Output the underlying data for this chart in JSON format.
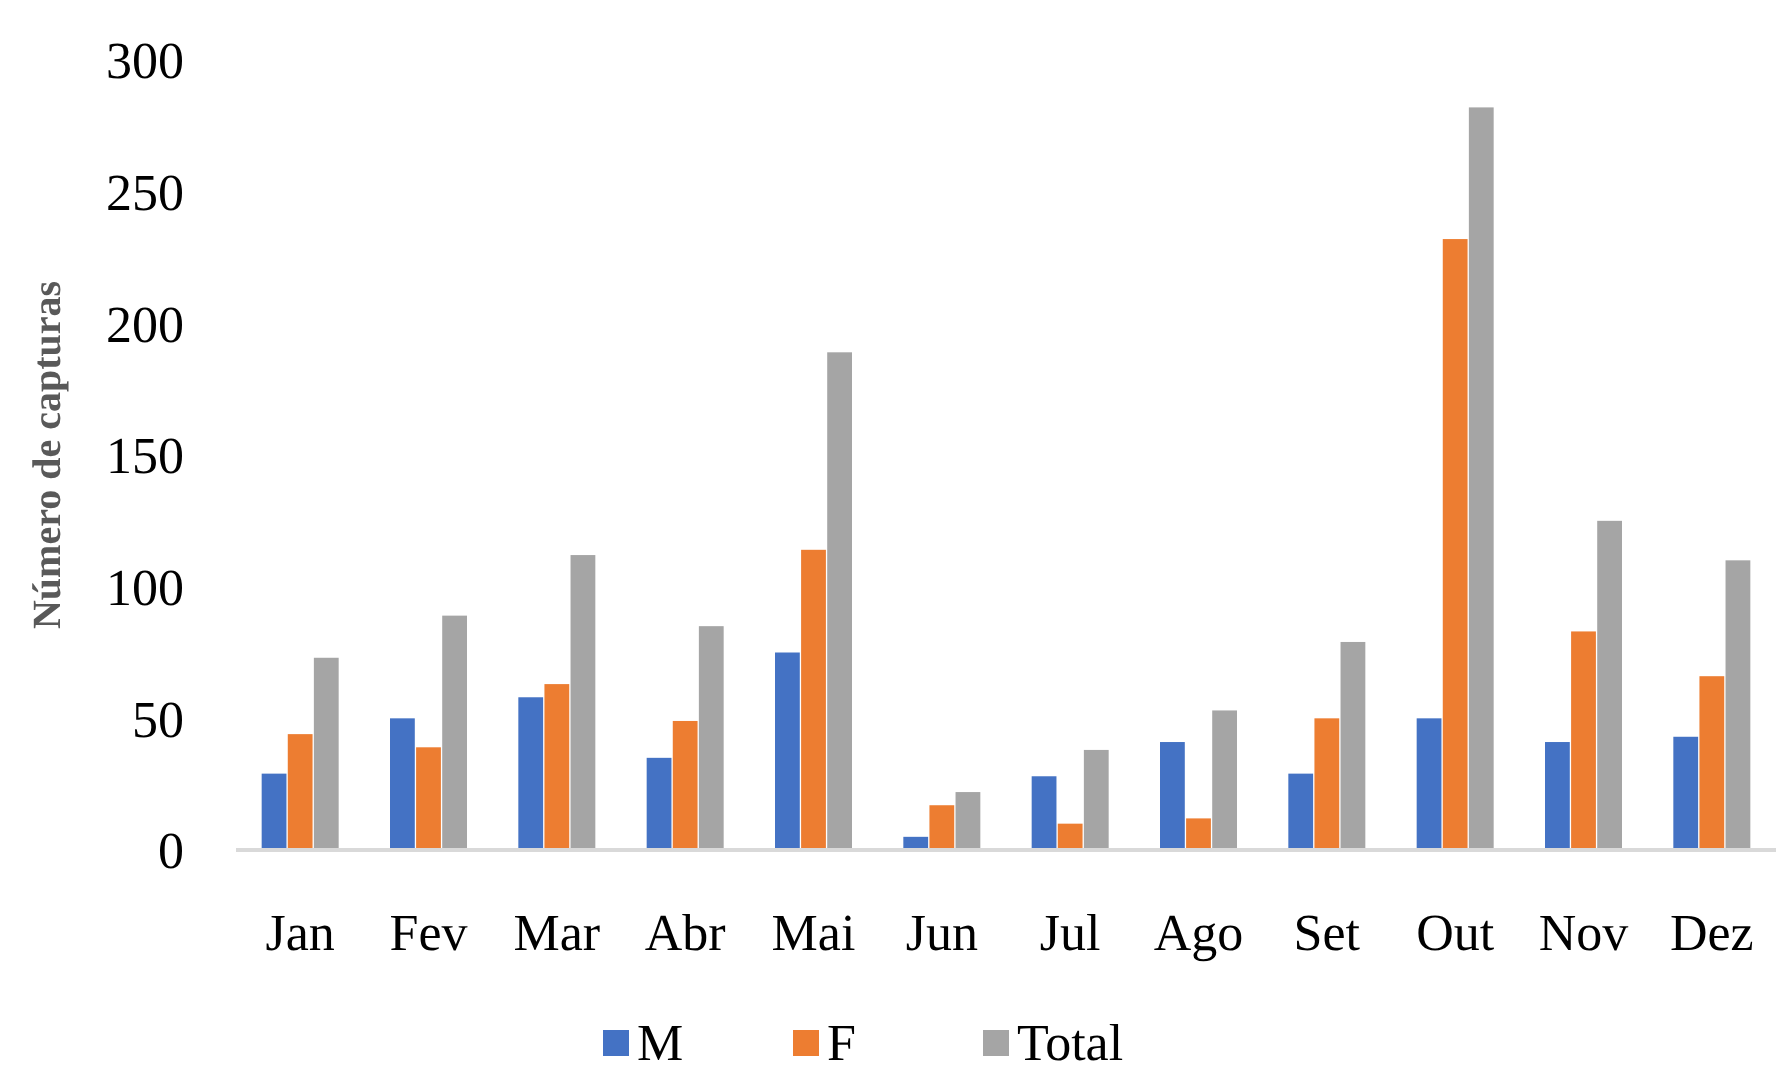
{
  "chart_data": {
    "type": "bar",
    "ylabel": "Número de capturas",
    "categories": [
      "Jan",
      "Fev",
      "Mar",
      "Abr",
      "Mai",
      "Jun",
      "Jul",
      "Ago",
      "Set",
      "Out",
      "Nov",
      "Dez"
    ],
    "series": [
      {
        "name": "M",
        "color": "#4472c4",
        "values": [
          29,
          50,
          58,
          35,
          75,
          5,
          28,
          41,
          29,
          50,
          41,
          43
        ]
      },
      {
        "name": "F",
        "color": "#ed7d31",
        "values": [
          44,
          39,
          63,
          49,
          114,
          17,
          10,
          12,
          50,
          232,
          83,
          66
        ]
      },
      {
        "name": "Total",
        "color": "#a5a5a5",
        "values": [
          73,
          89,
          112,
          85,
          189,
          22,
          38,
          53,
          79,
          282,
          125,
          110
        ]
      }
    ],
    "ylim": [
      0,
      300
    ],
    "yticks": [
      0,
      50,
      100,
      150,
      200,
      250,
      300
    ],
    "grid": false,
    "legend": "bottom"
  }
}
